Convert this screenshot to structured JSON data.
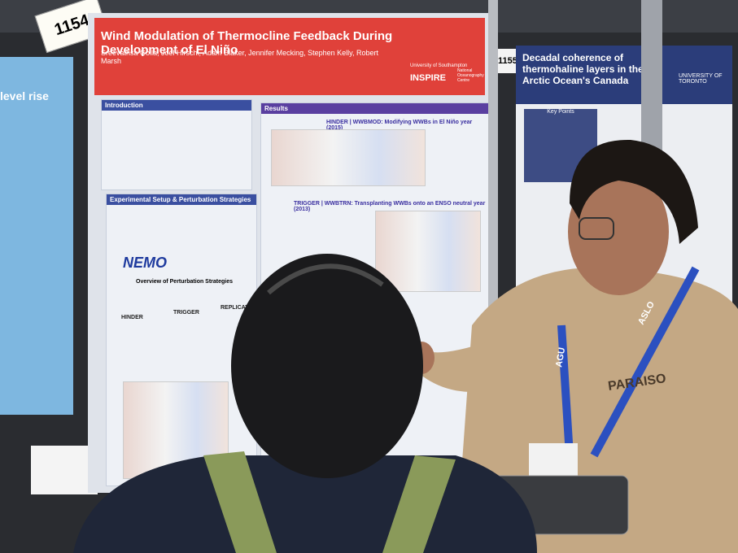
{
  "booth_numbers": [
    "1154",
    "1155"
  ],
  "left_poster": {
    "text": "level rise"
  },
  "main_poster": {
    "title": "Wind Modulation of Thermocline Feedback During Development of El Niño",
    "authors": "Sreevathsa Golla, Joël Hirschi, Adam Blaker, Jennifer Mecking, Stephen Kelly, Robert Marsh",
    "logos": [
      "University of Southampton",
      "INSPIRE",
      "National Oceanography Centre"
    ],
    "sections": [
      "Introduction",
      "Experimental Setup & Perturbation Strategies",
      "Results"
    ],
    "model": "NEMO",
    "overview": "Overview of Perturbation Strategies",
    "strategies": [
      "HINDER",
      "TRIGGER",
      "REPLICATE"
    ],
    "results_headings": [
      "HINDER | WWBMOD: Modifying WWBs in El Niño year (2015)",
      "TRIGGER | WWBTRN: Transplanting WWBs onto an ENSO neutral year (2013)"
    ]
  },
  "right_poster": {
    "title": "Decadal coherence of thermohaline layers in the Arctic Ocean's Canada",
    "logo": "UNIVERSITY OF TORONTO",
    "heading": "Key Points"
  },
  "person": {
    "lanyard": [
      "AGU",
      "ASLO"
    ],
    "shirt": "PARAISO"
  }
}
